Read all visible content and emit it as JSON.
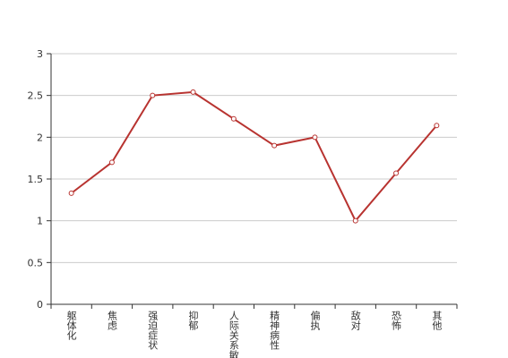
{
  "chart_data": {
    "type": "line",
    "categories": [
      "躯体化",
      "焦虑",
      "强迫症状",
      "抑郁",
      "人际关系敏感",
      "精神病性",
      "偏执",
      "敌对",
      "恐怖",
      "其他"
    ],
    "series": [
      {
        "name": "",
        "color": "#b83330",
        "values": [
          1.33,
          1.7,
          2.5,
          2.54,
          2.22,
          1.9,
          2.0,
          1.0,
          1.57,
          2.14
        ]
      }
    ],
    "ylim": [
      0,
      3
    ],
    "yticks": [
      0,
      0.5,
      1,
      1.5,
      2,
      2.5,
      3
    ],
    "grid": true
  }
}
